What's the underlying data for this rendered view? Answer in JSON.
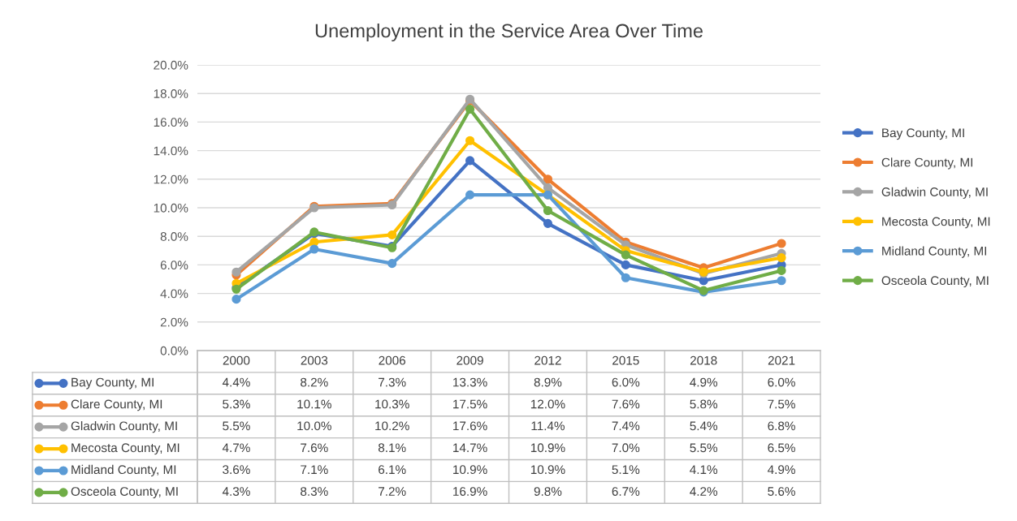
{
  "chart_data": {
    "type": "line",
    "title": "Unemployment in the Service Area Over Time",
    "categories": [
      "2000",
      "2003",
      "2006",
      "2009",
      "2012",
      "2015",
      "2018",
      "2021"
    ],
    "series": [
      {
        "name": "Bay County, MI",
        "color": "#4472c4",
        "values": [
          4.4,
          8.2,
          7.3,
          13.3,
          8.9,
          6.0,
          4.9,
          6.0
        ],
        "value_labels": [
          "4.4%",
          "8.2%",
          "7.3%",
          "13.3%",
          "8.9%",
          "6.0%",
          "4.9%",
          "6.0%"
        ]
      },
      {
        "name": "Clare County, MI",
        "color": "#ed7d31",
        "values": [
          5.3,
          10.1,
          10.3,
          17.5,
          12.0,
          7.6,
          5.8,
          7.5
        ],
        "value_labels": [
          "5.3%",
          "10.1%",
          "10.3%",
          "17.5%",
          "12.0%",
          "7.6%",
          "5.8%",
          "7.5%"
        ]
      },
      {
        "name": "Gladwin County, MI",
        "color": "#a5a5a5",
        "values": [
          5.5,
          10.0,
          10.2,
          17.6,
          11.4,
          7.4,
          5.4,
          6.8
        ],
        "value_labels": [
          "5.5%",
          "10.0%",
          "10.2%",
          "17.6%",
          "11.4%",
          "7.4%",
          "5.4%",
          "6.8%"
        ]
      },
      {
        "name": "Mecosta County, MI",
        "color": "#ffc000",
        "values": [
          4.7,
          7.6,
          8.1,
          14.7,
          10.9,
          7.0,
          5.5,
          6.5
        ],
        "value_labels": [
          "4.7%",
          "7.6%",
          "8.1%",
          "14.7%",
          "10.9%",
          "7.0%",
          "5.5%",
          "6.5%"
        ]
      },
      {
        "name": "Midland County, MI",
        "color": "#5b9bd5",
        "values": [
          3.6,
          7.1,
          6.1,
          10.9,
          10.9,
          5.1,
          4.1,
          4.9
        ],
        "value_labels": [
          "3.6%",
          "7.1%",
          "6.1%",
          "10.9%",
          "10.9%",
          "5.1%",
          "4.1%",
          "4.9%"
        ]
      },
      {
        "name": "Osceola County, MI",
        "color": "#70ad47",
        "values": [
          4.3,
          8.3,
          7.2,
          16.9,
          9.8,
          6.7,
          4.2,
          5.6
        ],
        "value_labels": [
          "4.3%",
          "8.3%",
          "7.2%",
          "16.9%",
          "9.8%",
          "6.7%",
          "4.2%",
          "5.6%"
        ]
      }
    ],
    "ylim": [
      0,
      20
    ],
    "yticks": [
      {
        "value": 0,
        "label": "0.0%"
      },
      {
        "value": 2,
        "label": "2.0%"
      },
      {
        "value": 4,
        "label": "4.0%"
      },
      {
        "value": 6,
        "label": "6.0%"
      },
      {
        "value": 8,
        "label": "8.0%"
      },
      {
        "value": 10,
        "label": "10.0%"
      },
      {
        "value": 12,
        "label": "12.0%"
      },
      {
        "value": 14,
        "label": "14.0%"
      },
      {
        "value": 16,
        "label": "16.0%"
      },
      {
        "value": 18,
        "label": "18.0%"
      },
      {
        "value": 20,
        "label": "20.0%"
      }
    ],
    "grid": "y",
    "legend": "right",
    "marker": "circle",
    "line_style": "solid"
  }
}
